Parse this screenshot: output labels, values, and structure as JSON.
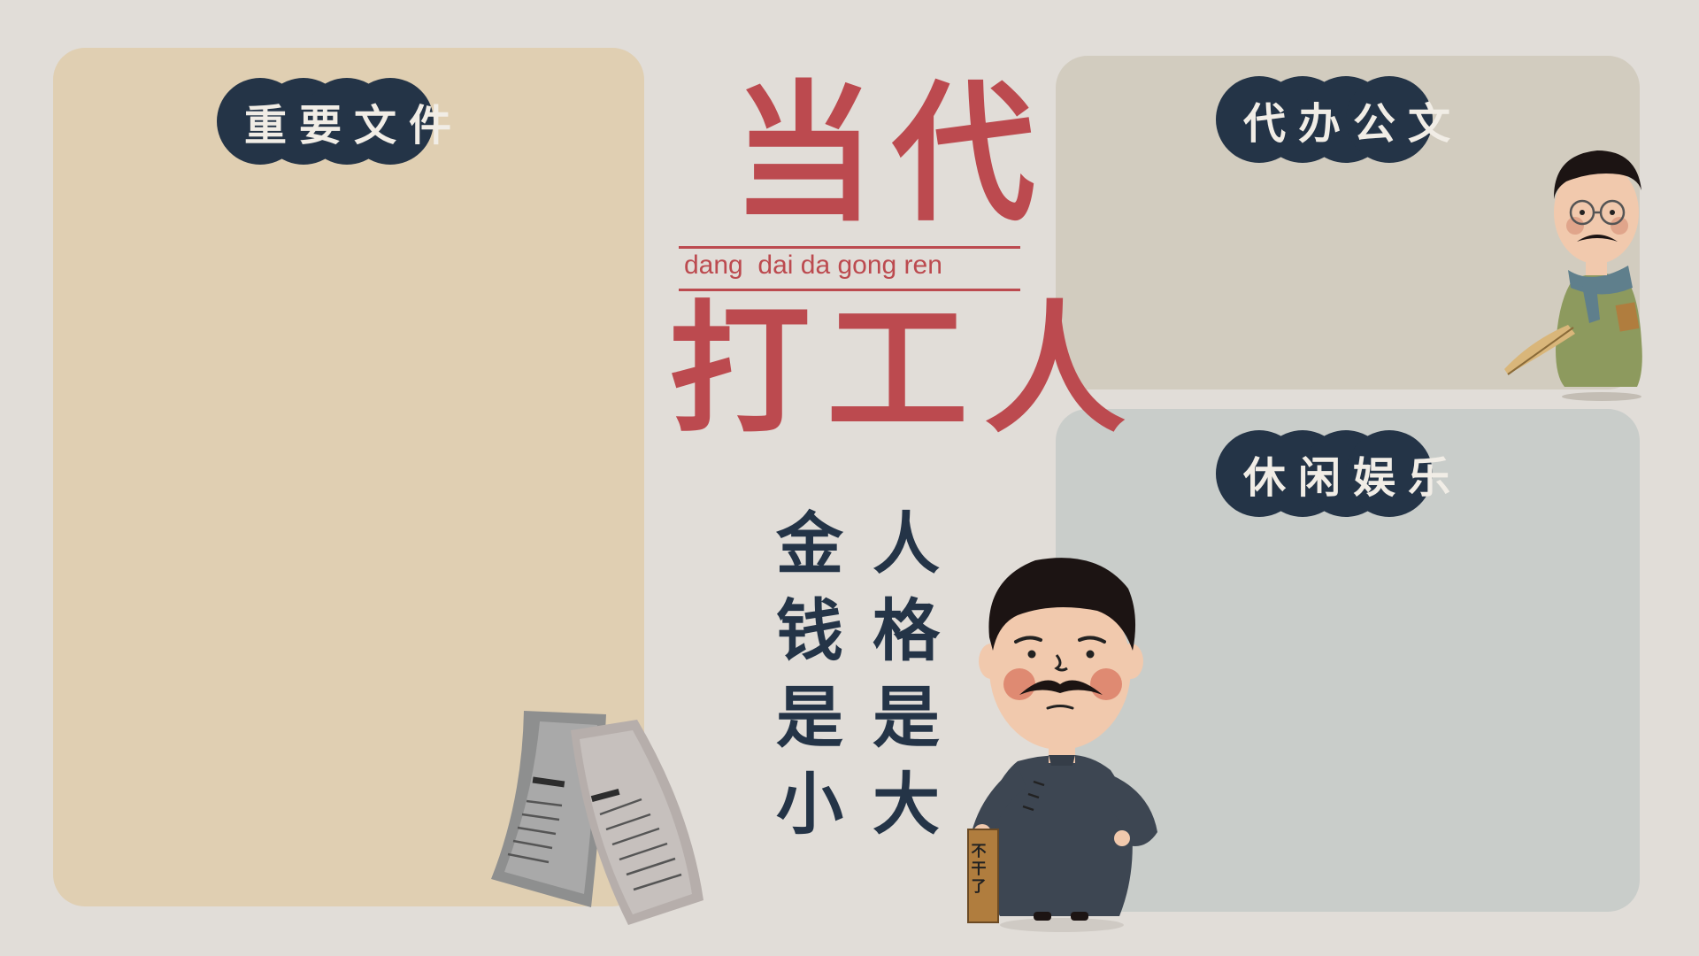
{
  "zones": {
    "files": {
      "label": "重要文件",
      "color": "#e0cfb2"
    },
    "docs": {
      "label": "代办公文",
      "color": "#d2ccbf"
    },
    "leisure": {
      "label": "休闲娱乐",
      "color": "#c9cdca"
    }
  },
  "title": {
    "top": "当代",
    "pinyin": "dang  dai da gong ren",
    "bottom": "打工人"
  },
  "verse": {
    "left": [
      "金",
      "钱",
      "是",
      "小"
    ],
    "right": [
      "人",
      "格",
      "是",
      "大"
    ]
  },
  "sign": {
    "text": "不干了"
  },
  "colors": {
    "background": "#e1ddd8",
    "accent_red": "#bc4a4f",
    "navy": "#243447"
  },
  "icons": {
    "man": "man-with-resignation-sign-icon",
    "scholar": "scholar-with-umbrella-icon",
    "newspaper": "newspaper-icon"
  }
}
